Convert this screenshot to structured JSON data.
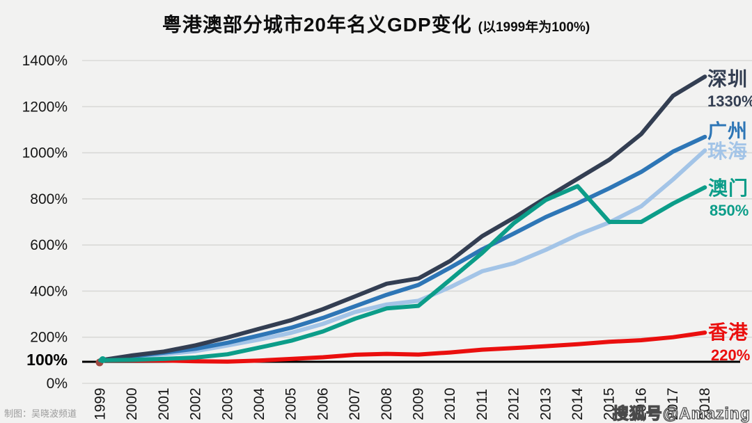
{
  "title": {
    "main": "粤港澳部分城市20年名义GDP变化",
    "suffix": "(以1999年为100%)"
  },
  "credit": "制图：吴晓波频道",
  "watermark": "搜狐号@Amazing",
  "colors": {
    "background": "#f2f2f1",
    "gridline": "#d9d9d7",
    "baseline": "#000000",
    "axis_text": "#161616",
    "start_dot": "#a04a42"
  },
  "chart_data": {
    "type": "line",
    "title": "粤港澳部分城市20年名义GDP变化 (以1999年为100%)",
    "x": [
      "1999",
      "2000",
      "2001",
      "2002",
      "2003",
      "2004",
      "2005",
      "2006",
      "2007",
      "2008",
      "2009",
      "2010",
      "2011",
      "2012",
      "2013",
      "2014",
      "2015",
      "2016",
      "2017",
      "2018"
    ],
    "y_ticks": [
      "1400%",
      "1200%",
      "1000%",
      "800%",
      "600%",
      "400%",
      "200%",
      "100%",
      "0%"
    ],
    "y_tick_values": [
      1400,
      1200,
      1000,
      800,
      600,
      400,
      200,
      100,
      0
    ],
    "ylim": [
      0,
      1400
    ],
    "baseline_value": 100,
    "grid": true,
    "legend_position": "right-of-line-ends",
    "series": [
      {
        "id": "shenzhen",
        "name": "深圳",
        "end_label": "1330%",
        "color": "#333e52",
        "values": [
          100,
          121,
          138,
          165,
          199,
          237,
          274,
          322,
          377,
          432,
          455,
          531,
          638,
          718,
          804,
          887,
          970,
          1081,
          1247,
          1330
        ]
      },
      {
        "id": "guangzhou",
        "name": "广州",
        "end_label": "",
        "color": "#2e76b6",
        "values": [
          100,
          117,
          133,
          150,
          176,
          208,
          241,
          284,
          334,
          384,
          427,
          502,
          581,
          650,
          721,
          781,
          846,
          917,
          1005,
          1069
        ]
      },
      {
        "id": "zhuhai",
        "name": "珠海",
        "end_label": "",
        "color": "#a3c4e7",
        "values": [
          100,
          114,
          126,
          140,
          164,
          190,
          219,
          258,
          309,
          342,
          358,
          417,
          486,
          521,
          579,
          644,
          698,
          768,
          884,
          1010
        ]
      },
      {
        "id": "macau",
        "name": "澳门",
        "end_label": "850%",
        "color": "#0c9d89",
        "values": [
          100,
          102,
          106,
          112,
          126,
          155,
          185,
          225,
          280,
          325,
          336,
          450,
          565,
          695,
          795,
          855,
          700,
          700,
          780,
          850
        ]
      },
      {
        "id": "hongkong",
        "name": "香港",
        "end_label": "220%",
        "color": "#ea0f0e",
        "values": [
          100,
          100,
          99,
          96,
          94,
          99,
          106,
          113,
          124,
          128,
          125,
          134,
          146,
          153,
          161,
          170,
          180,
          187,
          200,
          220
        ]
      }
    ]
  }
}
